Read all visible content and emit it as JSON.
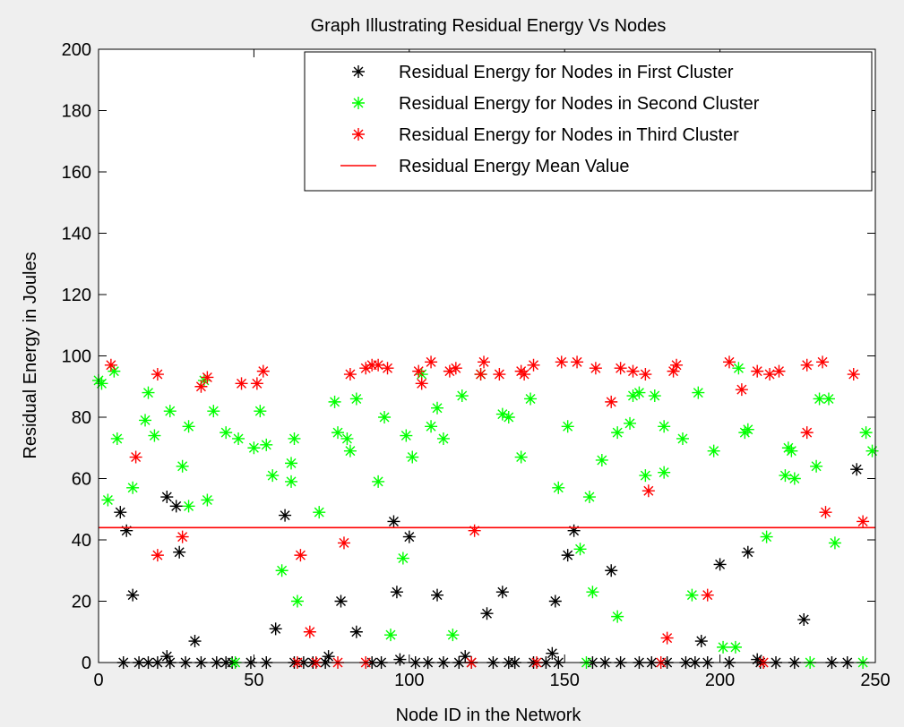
{
  "chart_data": {
    "type": "scatter",
    "title": "Graph Illustrating Residual Energy Vs Nodes",
    "xlabel": "Node ID in the Network",
    "ylabel": "Residual Energy in Joules",
    "xlim": [
      0,
      250
    ],
    "ylim": [
      0,
      200
    ],
    "xticks": [
      0,
      50,
      100,
      150,
      200,
      250
    ],
    "yticks": [
      0,
      20,
      40,
      60,
      80,
      100,
      120,
      140,
      160,
      180,
      200
    ],
    "grid": false,
    "legend_position": "top-right",
    "series": [
      {
        "name": "Residual Energy for Nodes in First Cluster",
        "color": "#000000",
        "marker": "star",
        "points": [
          [
            7,
            49
          ],
          [
            9,
            43
          ],
          [
            11,
            22
          ],
          [
            22,
            54
          ],
          [
            25,
            51
          ],
          [
            26,
            36
          ],
          [
            31,
            7
          ],
          [
            22,
            2
          ],
          [
            60,
            48
          ],
          [
            57,
            11
          ],
          [
            74,
            2
          ],
          [
            78,
            20
          ],
          [
            83,
            10
          ],
          [
            95,
            46
          ],
          [
            96,
            23
          ],
          [
            100,
            41
          ],
          [
            97,
            1
          ],
          [
            109,
            22
          ],
          [
            118,
            2
          ],
          [
            125,
            16
          ],
          [
            130,
            23
          ],
          [
            146,
            3
          ],
          [
            147,
            20
          ],
          [
            151,
            35
          ],
          [
            153,
            43
          ],
          [
            165,
            30
          ],
          [
            194,
            7
          ],
          [
            200,
            32
          ],
          [
            209,
            36
          ],
          [
            212,
            1
          ],
          [
            227,
            14
          ],
          [
            244,
            63
          ],
          [
            8,
            0
          ],
          [
            13,
            0
          ],
          [
            16,
            0
          ],
          [
            19,
            0
          ],
          [
            23,
            0
          ],
          [
            28,
            0
          ],
          [
            33,
            0
          ],
          [
            38,
            0
          ],
          [
            41,
            0
          ],
          [
            43,
            0
          ],
          [
            49,
            0
          ],
          [
            54,
            0
          ],
          [
            63,
            0
          ],
          [
            66,
            0
          ],
          [
            69,
            0
          ],
          [
            73,
            0
          ],
          [
            88,
            0
          ],
          [
            91,
            0
          ],
          [
            102,
            0
          ],
          [
            106,
            0
          ],
          [
            111,
            0
          ],
          [
            116,
            0
          ],
          [
            120,
            0
          ],
          [
            127,
            0
          ],
          [
            132,
            0
          ],
          [
            134,
            0
          ],
          [
            140,
            0
          ],
          [
            144,
            0
          ],
          [
            148,
            0
          ],
          [
            159,
            0
          ],
          [
            163,
            0
          ],
          [
            168,
            0
          ],
          [
            174,
            0
          ],
          [
            178,
            0
          ],
          [
            183,
            0
          ],
          [
            189,
            0
          ],
          [
            192,
            0
          ],
          [
            196,
            0
          ],
          [
            203,
            0
          ],
          [
            213,
            0
          ],
          [
            218,
            0
          ],
          [
            224,
            0
          ],
          [
            236,
            0
          ],
          [
            241,
            0
          ]
        ]
      },
      {
        "name": "Residual Energy for Nodes in Second Cluster",
        "color": "#00ff00",
        "marker": "star",
        "points": [
          [
            0,
            92
          ],
          [
            1,
            91
          ],
          [
            3,
            53
          ],
          [
            5,
            95
          ],
          [
            6,
            73
          ],
          [
            11,
            57
          ],
          [
            15,
            79
          ],
          [
            16,
            88
          ],
          [
            18,
            74
          ],
          [
            23,
            82
          ],
          [
            27,
            64
          ],
          [
            29,
            51
          ],
          [
            29,
            77
          ],
          [
            34,
            92
          ],
          [
            35,
            53
          ],
          [
            37,
            82
          ],
          [
            41,
            75
          ],
          [
            45,
            73
          ],
          [
            50,
            70
          ],
          [
            52,
            82
          ],
          [
            54,
            71
          ],
          [
            56,
            61
          ],
          [
            59,
            30
          ],
          [
            62,
            65
          ],
          [
            62,
            59
          ],
          [
            63,
            73
          ],
          [
            64,
            20
          ],
          [
            71,
            49
          ],
          [
            76,
            85
          ],
          [
            77,
            75
          ],
          [
            80,
            73
          ],
          [
            81,
            69
          ],
          [
            83,
            86
          ],
          [
            90,
            59
          ],
          [
            92,
            80
          ],
          [
            94,
            9
          ],
          [
            98,
            34
          ],
          [
            99,
            74
          ],
          [
            101,
            67
          ],
          [
            104,
            94
          ],
          [
            107,
            77
          ],
          [
            109,
            83
          ],
          [
            111,
            73
          ],
          [
            114,
            9
          ],
          [
            117,
            87
          ],
          [
            123,
            94
          ],
          [
            130,
            81
          ],
          [
            132,
            80
          ],
          [
            136,
            67
          ],
          [
            139,
            86
          ],
          [
            148,
            57
          ],
          [
            151,
            77
          ],
          [
            155,
            37
          ],
          [
            158,
            54
          ],
          [
            159,
            23
          ],
          [
            162,
            66
          ],
          [
            167,
            15
          ],
          [
            167,
            75
          ],
          [
            171,
            78
          ],
          [
            172,
            87
          ],
          [
            174,
            88
          ],
          [
            176,
            61
          ],
          [
            179,
            87
          ],
          [
            182,
            62
          ],
          [
            182,
            77
          ],
          [
            188,
            73
          ],
          [
            191,
            22
          ],
          [
            193,
            88
          ],
          [
            198,
            69
          ],
          [
            201,
            5
          ],
          [
            205,
            5
          ],
          [
            206,
            96
          ],
          [
            208,
            75
          ],
          [
            209,
            76
          ],
          [
            215,
            41
          ],
          [
            221,
            61
          ],
          [
            222,
            70
          ],
          [
            223,
            69
          ],
          [
            224,
            60
          ],
          [
            232,
            86
          ],
          [
            231,
            64
          ],
          [
            235,
            86
          ],
          [
            237,
            39
          ],
          [
            247,
            75
          ],
          [
            249,
            69
          ],
          [
            44,
            0
          ],
          [
            157,
            0
          ],
          [
            229,
            0
          ],
          [
            246,
            0
          ]
        ]
      },
      {
        "name": "Residual Energy for Nodes in Third Cluster",
        "color": "#ff0000",
        "marker": "star",
        "points": [
          [
            4,
            97
          ],
          [
            12,
            67
          ],
          [
            19,
            35
          ],
          [
            19,
            94
          ],
          [
            27,
            41
          ],
          [
            33,
            90
          ],
          [
            35,
            93
          ],
          [
            46,
            91
          ],
          [
            51,
            91
          ],
          [
            53,
            95
          ],
          [
            65,
            35
          ],
          [
            68,
            10
          ],
          [
            79,
            39
          ],
          [
            81,
            94
          ],
          [
            86,
            96
          ],
          [
            88,
            97
          ],
          [
            90,
            97
          ],
          [
            93,
            96
          ],
          [
            103,
            95
          ],
          [
            104,
            91
          ],
          [
            107,
            98
          ],
          [
            113,
            95
          ],
          [
            115,
            96
          ],
          [
            121,
            43
          ],
          [
            123,
            94
          ],
          [
            124,
            98
          ],
          [
            129,
            94
          ],
          [
            136,
            95
          ],
          [
            137,
            94
          ],
          [
            140,
            97
          ],
          [
            149,
            98
          ],
          [
            154,
            98
          ],
          [
            160,
            96
          ],
          [
            165,
            85
          ],
          [
            168,
            96
          ],
          [
            172,
            95
          ],
          [
            176,
            94
          ],
          [
            177,
            56
          ],
          [
            183,
            8
          ],
          [
            185,
            95
          ],
          [
            186,
            97
          ],
          [
            196,
            22
          ],
          [
            203,
            98
          ],
          [
            207,
            89
          ],
          [
            212,
            95
          ],
          [
            216,
            94
          ],
          [
            219,
            95
          ],
          [
            228,
            97
          ],
          [
            228,
            75
          ],
          [
            233,
            98
          ],
          [
            234,
            49
          ],
          [
            243,
            94
          ],
          [
            246,
            46
          ],
          [
            64,
            0
          ],
          [
            70,
            0
          ],
          [
            77,
            0
          ],
          [
            86,
            0
          ],
          [
            120,
            0
          ],
          [
            141,
            0
          ],
          [
            181,
            0
          ],
          [
            214,
            0
          ]
        ]
      },
      {
        "name": "Residual Energy Mean Value",
        "color": "#ff0000",
        "marker": "line",
        "x": [
          0,
          250
        ],
        "y": [
          44,
          44
        ]
      }
    ]
  }
}
